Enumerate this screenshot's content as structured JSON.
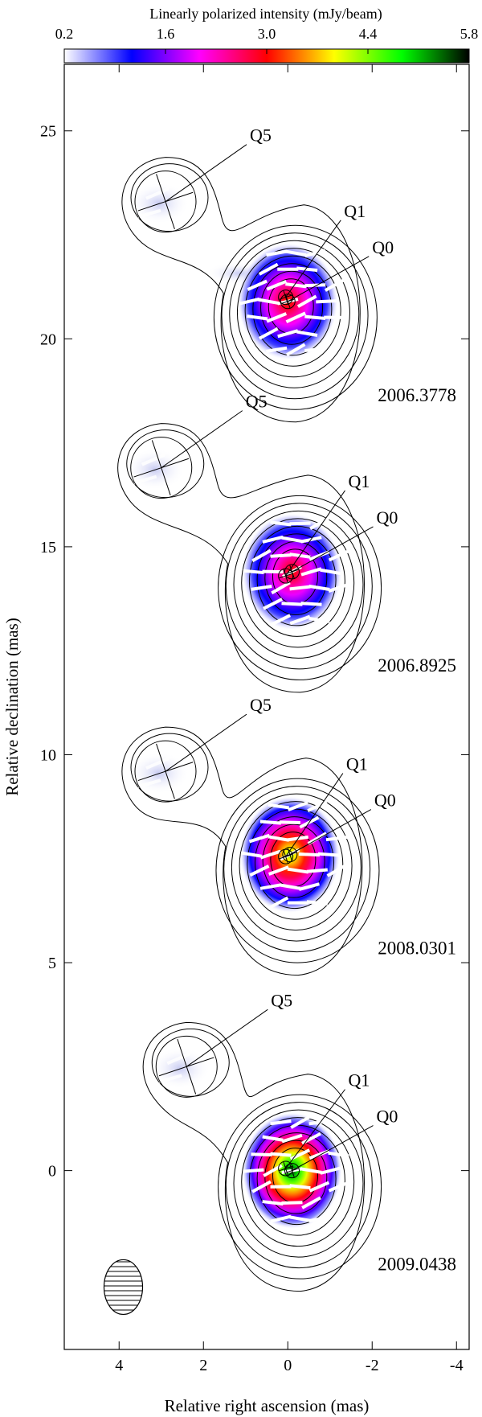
{
  "colorbar": {
    "title": "Linearly polarized intensity (mJy/beam)",
    "ticks": [
      "0.2",
      "1.6",
      "3.0",
      "4.4",
      "5.8"
    ],
    "tick_values": [
      0.2,
      1.6,
      3.0,
      4.4,
      5.8
    ],
    "stops": [
      "#ffffff",
      "#0000ff",
      "#ff00ff",
      "#ff0000",
      "#ffff00",
      "#00ff00",
      "#000000"
    ]
  },
  "chart_data": {
    "type": "contour-map",
    "xlabel": "Relative right ascension (mas)",
    "ylabel": "Relative declination (mas)",
    "xlim": [
      5.3,
      -4.3
    ],
    "ylim": [
      -4.3,
      26.6
    ],
    "xticks": [
      4,
      2,
      0,
      -2,
      -4
    ],
    "xtick_labels": [
      "4",
      "2",
      "0",
      "-2",
      "-4"
    ],
    "yticks": [
      0,
      5,
      10,
      15,
      20,
      25
    ],
    "ytick_labels": [
      "0",
      "5",
      "10",
      "15",
      "20",
      "25"
    ],
    "beam": {
      "ra": 3.9,
      "dec": -2.8
    },
    "epochs": [
      {
        "label": "2006.3778",
        "dec_offset": 20.9,
        "peak_pol_mJy": 3.2,
        "components": [
          {
            "name": "Q0",
            "ra": 0.0,
            "dec": 20.9
          },
          {
            "name": "Q1",
            "ra": 0.05,
            "dec": 21.0
          },
          {
            "name": "Q5",
            "ra": 2.9,
            "dec": 23.3
          }
        ]
      },
      {
        "label": "2006.8925",
        "dec_offset": 14.3,
        "peak_pol_mJy": 3.1,
        "components": [
          {
            "name": "Q0",
            "ra": -0.1,
            "dec": 14.4
          },
          {
            "name": "Q1",
            "ra": 0.05,
            "dec": 14.3
          },
          {
            "name": "Q5",
            "ra": 3.0,
            "dec": 16.9
          }
        ]
      },
      {
        "label": "2008.0301",
        "dec_offset": 7.6,
        "peak_pol_mJy": 4.3,
        "components": [
          {
            "name": "Q0",
            "ra": -0.05,
            "dec": 7.6
          },
          {
            "name": "Q1",
            "ra": 0.05,
            "dec": 7.55
          },
          {
            "name": "Q5",
            "ra": 2.9,
            "dec": 9.6
          }
        ]
      },
      {
        "label": "2009.0438",
        "dec_offset": 0.0,
        "peak_pol_mJy": 5.6,
        "components": [
          {
            "name": "Q0",
            "ra": -0.1,
            "dec": 0.0
          },
          {
            "name": "Q1",
            "ra": 0.05,
            "dec": 0.05
          },
          {
            "name": "Q5",
            "ra": 2.4,
            "dec": 2.5
          }
        ]
      }
    ]
  }
}
